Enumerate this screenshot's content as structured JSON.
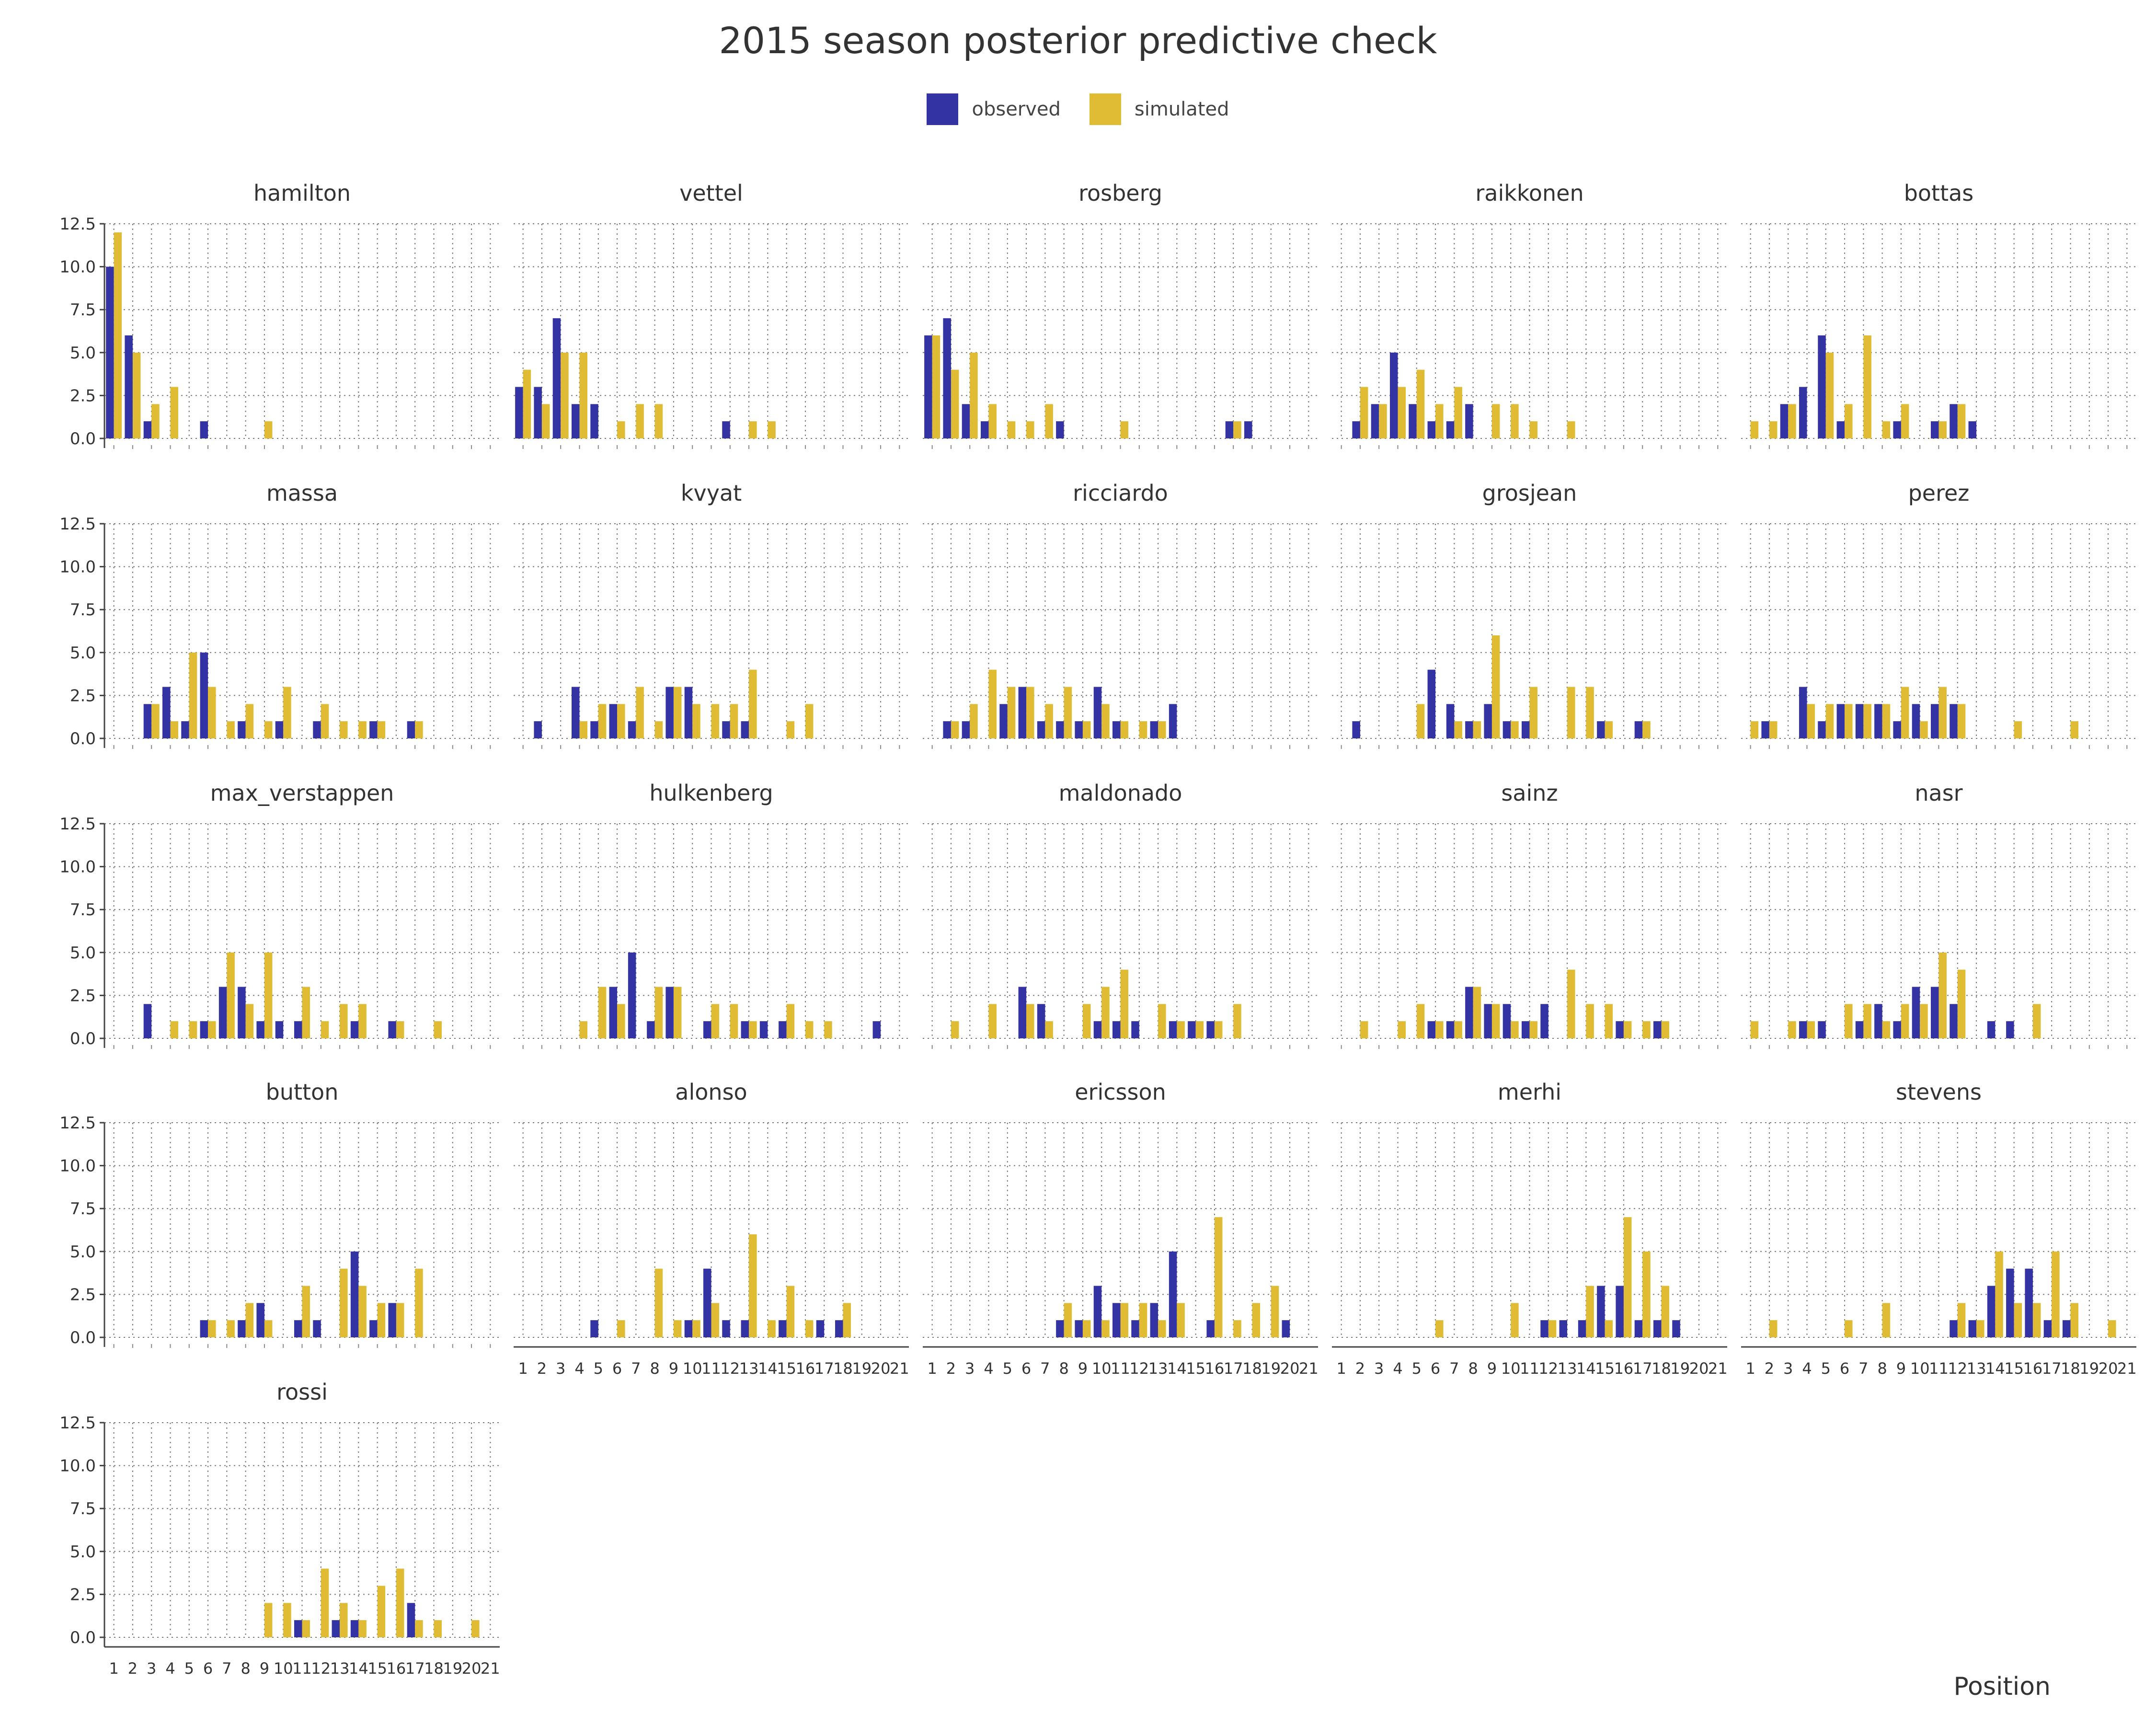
{
  "chart_data": {
    "type": "bar",
    "title": "2015 season posterior predictive check",
    "xlabel": "Position",
    "ylabel": "",
    "categories": [
      "1",
      "2",
      "3",
      "4",
      "5",
      "6",
      "7",
      "8",
      "9",
      "10",
      "11",
      "12",
      "13",
      "14",
      "15",
      "16",
      "17",
      "18",
      "19",
      "20",
      "21"
    ],
    "yticks": [
      "0.0",
      "2.5",
      "5.0",
      "7.5",
      "10.0",
      "12.5"
    ],
    "ylim": [
      0,
      12.5
    ],
    "grid": true,
    "legend_position": "top-center",
    "series_names": [
      "observed",
      "simulated"
    ],
    "colors": {
      "observed": "#3333a3",
      "simulated": "#e0bb34"
    },
    "panels": [
      {
        "name": "hamilton",
        "observed": [
          10,
          6,
          1,
          0,
          0,
          1,
          0,
          0,
          0,
          0,
          0,
          0,
          0,
          0,
          0,
          0,
          0,
          0,
          0,
          0,
          0
        ],
        "simulated": [
          12,
          5,
          2,
          3,
          0,
          0,
          0,
          0,
          1,
          0,
          0,
          0,
          0,
          0,
          0,
          0,
          0,
          0,
          0,
          0,
          0
        ]
      },
      {
        "name": "vettel",
        "observed": [
          3,
          3,
          7,
          2,
          2,
          0,
          0,
          0,
          0,
          0,
          0,
          1,
          0,
          0,
          0,
          0,
          0,
          0,
          0,
          0,
          0
        ],
        "simulated": [
          4,
          2,
          5,
          5,
          0,
          1,
          2,
          2,
          0,
          0,
          0,
          0,
          1,
          1,
          0,
          0,
          0,
          0,
          0,
          0,
          0
        ]
      },
      {
        "name": "rosberg",
        "observed": [
          6,
          7,
          2,
          1,
          0,
          0,
          0,
          1,
          0,
          0,
          0,
          0,
          0,
          0,
          0,
          0,
          1,
          1,
          0,
          0,
          0
        ],
        "simulated": [
          6,
          4,
          5,
          2,
          1,
          1,
          2,
          0,
          0,
          0,
          1,
          0,
          0,
          0,
          0,
          0,
          1,
          0,
          0,
          0,
          0
        ]
      },
      {
        "name": "raikkonen",
        "observed": [
          0,
          1,
          2,
          5,
          2,
          1,
          1,
          2,
          0,
          0,
          0,
          0,
          0,
          0,
          0,
          0,
          0,
          0,
          0,
          0,
          0
        ],
        "simulated": [
          0,
          3,
          2,
          3,
          4,
          2,
          3,
          0,
          2,
          2,
          1,
          0,
          1,
          0,
          0,
          0,
          0,
          0,
          0,
          0,
          0
        ]
      },
      {
        "name": "bottas",
        "observed": [
          0,
          0,
          2,
          3,
          6,
          1,
          0,
          0,
          1,
          0,
          1,
          2,
          1,
          0,
          0,
          0,
          0,
          0,
          0,
          0,
          0
        ],
        "simulated": [
          1,
          1,
          2,
          0,
          5,
          2,
          6,
          1,
          2,
          0,
          1,
          2,
          0,
          0,
          0,
          0,
          0,
          0,
          0,
          0,
          0
        ]
      },
      {
        "name": "massa",
        "observed": [
          0,
          0,
          2,
          3,
          1,
          5,
          0,
          1,
          0,
          1,
          0,
          1,
          0,
          0,
          1,
          0,
          1,
          0,
          0,
          0,
          0
        ],
        "simulated": [
          0,
          0,
          2,
          1,
          5,
          3,
          1,
          2,
          1,
          3,
          0,
          2,
          1,
          1,
          1,
          0,
          1,
          0,
          0,
          0,
          0
        ]
      },
      {
        "name": "kvyat",
        "observed": [
          0,
          1,
          0,
          3,
          1,
          2,
          1,
          0,
          3,
          3,
          0,
          1,
          1,
          0,
          0,
          0,
          0,
          0,
          0,
          0,
          0
        ],
        "simulated": [
          0,
          0,
          0,
          1,
          2,
          2,
          3,
          1,
          3,
          2,
          2,
          2,
          4,
          0,
          1,
          2,
          0,
          0,
          0,
          0,
          0
        ]
      },
      {
        "name": "ricciardo",
        "observed": [
          0,
          1,
          1,
          0,
          2,
          3,
          1,
          1,
          1,
          3,
          1,
          0,
          1,
          2,
          0,
          0,
          0,
          0,
          0,
          0,
          0
        ],
        "simulated": [
          0,
          1,
          2,
          4,
          3,
          3,
          2,
          3,
          1,
          2,
          1,
          1,
          1,
          0,
          0,
          0,
          0,
          0,
          0,
          0,
          0
        ]
      },
      {
        "name": "grosjean",
        "observed": [
          0,
          1,
          0,
          0,
          0,
          4,
          2,
          1,
          2,
          1,
          1,
          0,
          0,
          0,
          1,
          0,
          1,
          0,
          0,
          0,
          0
        ],
        "simulated": [
          0,
          0,
          0,
          0,
          2,
          0,
          1,
          1,
          6,
          1,
          3,
          0,
          3,
          3,
          1,
          0,
          1,
          0,
          0,
          0,
          0
        ]
      },
      {
        "name": "perez",
        "observed": [
          0,
          1,
          0,
          3,
          1,
          2,
          2,
          2,
          1,
          2,
          2,
          2,
          0,
          0,
          0,
          0,
          0,
          0,
          0,
          0,
          0
        ],
        "simulated": [
          1,
          1,
          0,
          2,
          2,
          2,
          2,
          2,
          3,
          1,
          3,
          2,
          0,
          0,
          1,
          0,
          0,
          1,
          0,
          0,
          0
        ]
      },
      {
        "name": "max_verstappen",
        "observed": [
          0,
          0,
          2,
          0,
          0,
          1,
          3,
          3,
          1,
          1,
          1,
          0,
          0,
          1,
          0,
          1,
          0,
          0,
          0,
          0,
          0
        ],
        "simulated": [
          0,
          0,
          0,
          1,
          1,
          1,
          5,
          2,
          5,
          0,
          3,
          1,
          2,
          2,
          0,
          1,
          0,
          1,
          0,
          0,
          0
        ]
      },
      {
        "name": "hulkenberg",
        "observed": [
          0,
          0,
          0,
          0,
          0,
          3,
          5,
          1,
          3,
          0,
          1,
          0,
          1,
          1,
          1,
          0,
          0,
          0,
          0,
          1,
          0
        ],
        "simulated": [
          0,
          0,
          0,
          1,
          3,
          2,
          0,
          3,
          3,
          0,
          2,
          2,
          1,
          0,
          2,
          1,
          1,
          0,
          0,
          0,
          0
        ]
      },
      {
        "name": "maldonado",
        "observed": [
          0,
          0,
          0,
          0,
          0,
          3,
          2,
          0,
          0,
          1,
          1,
          1,
          0,
          1,
          1,
          1,
          0,
          0,
          0,
          0,
          0
        ],
        "simulated": [
          0,
          1,
          0,
          2,
          0,
          2,
          1,
          0,
          2,
          3,
          4,
          0,
          2,
          1,
          1,
          1,
          2,
          0,
          0,
          0,
          0
        ]
      },
      {
        "name": "sainz",
        "observed": [
          0,
          0,
          0,
          0,
          0,
          1,
          1,
          3,
          2,
          2,
          1,
          2,
          0,
          0,
          0,
          1,
          0,
          1,
          0,
          0,
          0
        ],
        "simulated": [
          0,
          1,
          0,
          1,
          2,
          1,
          1,
          3,
          2,
          1,
          1,
          0,
          4,
          2,
          2,
          1,
          1,
          1,
          0,
          0,
          0
        ]
      },
      {
        "name": "nasr",
        "observed": [
          0,
          0,
          0,
          1,
          1,
          0,
          1,
          2,
          1,
          3,
          3,
          2,
          0,
          1,
          1,
          0,
          0,
          0,
          0,
          0,
          0
        ],
        "simulated": [
          1,
          0,
          1,
          1,
          0,
          2,
          2,
          1,
          2,
          2,
          5,
          4,
          0,
          0,
          0,
          2,
          0,
          0,
          0,
          0,
          0
        ]
      },
      {
        "name": "button",
        "observed": [
          0,
          0,
          0,
          0,
          0,
          1,
          0,
          1,
          2,
          0,
          1,
          1,
          0,
          5,
          1,
          2,
          0,
          0,
          0,
          0,
          0
        ],
        "simulated": [
          0,
          0,
          0,
          0,
          0,
          1,
          1,
          2,
          1,
          0,
          3,
          0,
          4,
          3,
          2,
          2,
          4,
          0,
          0,
          0,
          0
        ]
      },
      {
        "name": "alonso",
        "observed": [
          0,
          0,
          0,
          0,
          1,
          0,
          0,
          0,
          0,
          1,
          4,
          1,
          1,
          0,
          1,
          0,
          1,
          1,
          0,
          0,
          0
        ],
        "simulated": [
          0,
          0,
          0,
          0,
          0,
          1,
          0,
          4,
          1,
          1,
          2,
          0,
          6,
          1,
          3,
          1,
          0,
          2,
          0,
          0,
          0
        ]
      },
      {
        "name": "ericsson",
        "observed": [
          0,
          0,
          0,
          0,
          0,
          0,
          0,
          1,
          1,
          3,
          2,
          1,
          2,
          5,
          0,
          1,
          0,
          0,
          0,
          1,
          0
        ],
        "simulated": [
          0,
          0,
          0,
          0,
          0,
          0,
          0,
          2,
          1,
          1,
          2,
          2,
          1,
          2,
          0,
          7,
          1,
          2,
          3,
          0,
          0
        ]
      },
      {
        "name": "merhi",
        "observed": [
          0,
          0,
          0,
          0,
          0,
          0,
          0,
          0,
          0,
          0,
          0,
          1,
          1,
          1,
          3,
          3,
          1,
          1,
          1,
          0,
          0
        ],
        "simulated": [
          0,
          0,
          0,
          0,
          0,
          1,
          0,
          0,
          0,
          2,
          0,
          1,
          0,
          3,
          1,
          7,
          5,
          3,
          0,
          0,
          0
        ]
      },
      {
        "name": "stevens",
        "observed": [
          0,
          0,
          0,
          0,
          0,
          0,
          0,
          0,
          0,
          0,
          0,
          1,
          1,
          3,
          4,
          4,
          1,
          1,
          0,
          0,
          0
        ],
        "simulated": [
          0,
          1,
          0,
          0,
          0,
          1,
          0,
          2,
          0,
          0,
          0,
          2,
          1,
          5,
          2,
          2,
          5,
          2,
          0,
          1,
          0
        ]
      },
      {
        "name": "rossi",
        "observed": [
          0,
          0,
          0,
          0,
          0,
          0,
          0,
          0,
          0,
          0,
          1,
          0,
          1,
          1,
          0,
          0,
          2,
          0,
          0,
          0,
          0
        ],
        "simulated": [
          0,
          0,
          0,
          0,
          0,
          0,
          0,
          0,
          2,
          2,
          1,
          4,
          2,
          1,
          3,
          4,
          1,
          1,
          0,
          1,
          0
        ]
      }
    ],
    "x_tick_panels": [
      "rossi",
      "alonso",
      "ericsson",
      "merhi",
      "stevens"
    ]
  }
}
